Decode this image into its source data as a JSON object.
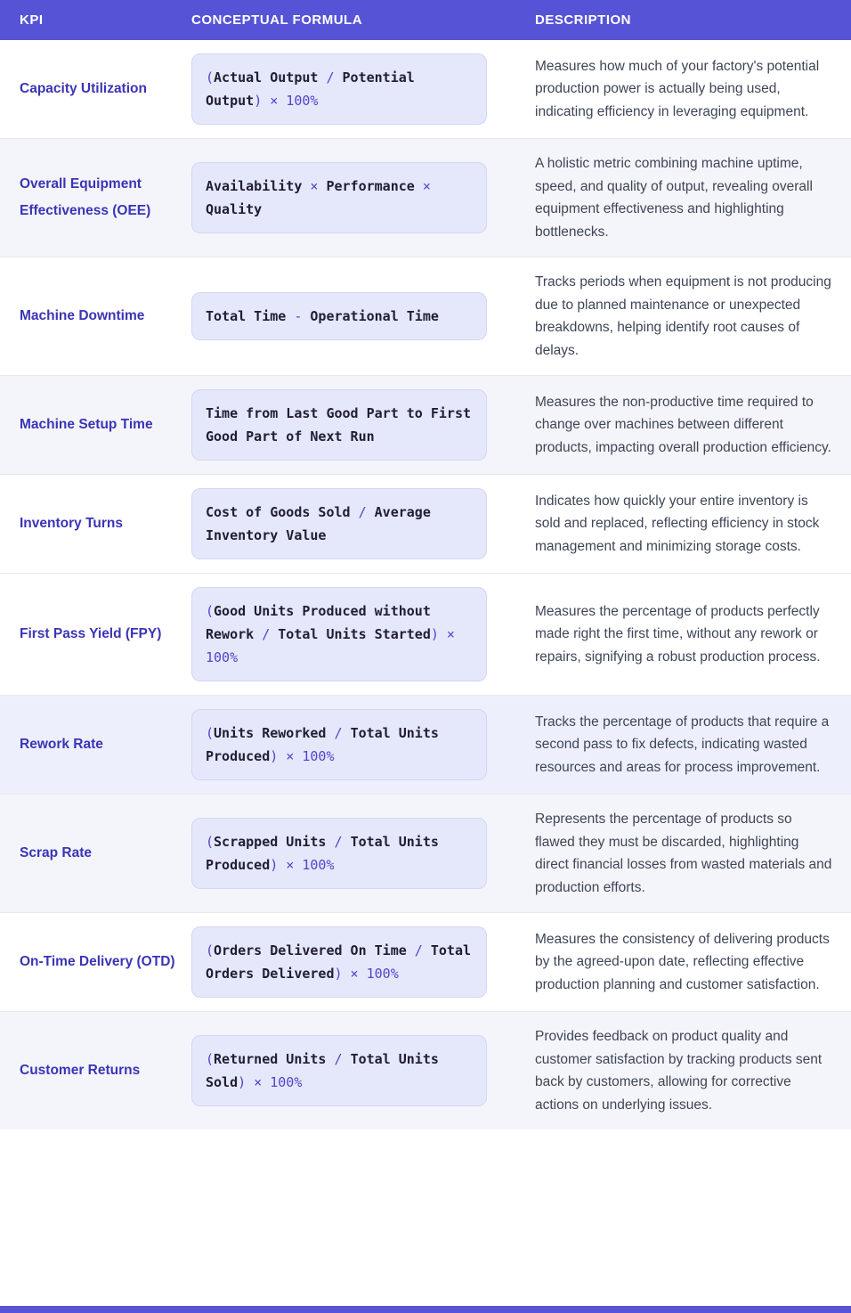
{
  "colors": {
    "header_bg": "#5653D6",
    "header_text": "#FFFFFF",
    "kpi_text": "#3B34B6",
    "description_text": "#3E4557",
    "formula_bg": "#E5E7FB",
    "formula_border": "#D3D6F5",
    "formula_var": "#1F1E33",
    "formula_op": "#4F46C9",
    "row_white_bg": "#FFFFFF",
    "row_alt_bg": "#F4F5FA",
    "row_highlight_bg": "#EDF0FC",
    "divider": "#E7E8F0",
    "footer_bar": "#5653D6"
  },
  "table": {
    "columns": [
      {
        "key": "kpi",
        "label": "KPI"
      },
      {
        "key": "formula",
        "label": "CONCEPTUAL FORMULA"
      },
      {
        "key": "description",
        "label": "DESCRIPTION"
      }
    ],
    "rows": [
      {
        "kpi": "Capacity Utilization",
        "tone": "white",
        "formula_text": "(Actual Output / Potential Output) × 100%",
        "formula_segments": [
          [
            "o",
            "("
          ],
          [
            "v",
            "Actual Output"
          ],
          [
            "o",
            " / "
          ],
          [
            "v",
            "Potential Output"
          ],
          [
            "o",
            ") × 100%"
          ]
        ],
        "description": "Measures how much of your factory's potential production power is actually being used, indicating efficiency in leveraging equipment."
      },
      {
        "kpi": "Overall Equipment Effectiveness (OEE)",
        "tone": "gray",
        "formula_text": "Availability × Performance × Quality",
        "formula_segments": [
          [
            "v",
            "Availability"
          ],
          [
            "o",
            " × "
          ],
          [
            "v",
            "Performance"
          ],
          [
            "o",
            " × "
          ],
          [
            "v",
            "Quality"
          ]
        ],
        "description": "A holistic metric combining machine uptime, speed, and quality of output, revealing overall equipment effectiveness and highlighting bottlenecks."
      },
      {
        "kpi": "Machine Downtime",
        "tone": "white",
        "formula_text": "Total Time - Operational Time",
        "formula_segments": [
          [
            "v",
            "Total Time"
          ],
          [
            "o",
            " - "
          ],
          [
            "v",
            "Operational Time"
          ]
        ],
        "description": "Tracks periods when equipment is not producing due to planned maintenance or unexpected breakdowns, helping identify root causes of delays."
      },
      {
        "kpi": "Machine Setup Time",
        "tone": "gray",
        "formula_text": "Time from Last Good Part to First Good Part of Next Run",
        "formula_segments": [
          [
            "v",
            "Time from Last Good Part to First Good Part of Next Run"
          ]
        ],
        "description": "Measures the non-productive time required to change over machines between different products, impacting overall production efficiency."
      },
      {
        "kpi": "Inventory Turns",
        "tone": "white",
        "formula_text": "Cost of Goods Sold / Average Inventory Value",
        "formula_segments": [
          [
            "v",
            "Cost of Goods Sold"
          ],
          [
            "o",
            " / "
          ],
          [
            "v",
            "Average Inventory Value"
          ]
        ],
        "description": "Indicates how quickly your entire inventory is sold and replaced, reflecting efficiency in stock management and minimizing storage costs."
      },
      {
        "kpi": "First Pass Yield (FPY)",
        "tone": "white",
        "formula_text": "(Good Units Produced without Rework / Total Units Started) × 100%",
        "formula_segments": [
          [
            "o",
            "("
          ],
          [
            "v",
            "Good Units Produced without Rework"
          ],
          [
            "o",
            " / "
          ],
          [
            "v",
            "Total Units Started"
          ],
          [
            "o",
            ") × 100%"
          ]
        ],
        "description": "Measures the percentage of products perfectly made right the first time, without any rework or repairs, signifying a robust production process."
      },
      {
        "kpi": "Rework Rate",
        "tone": "highlight",
        "formula_text": "(Units Reworked / Total Units Produced) × 100%",
        "formula_segments": [
          [
            "o",
            "("
          ],
          [
            "v",
            "Units Reworked"
          ],
          [
            "o",
            " / "
          ],
          [
            "v",
            "Total Units Produced"
          ],
          [
            "o",
            ") × 100%"
          ]
        ],
        "description": "Tracks the percentage of products that require a second pass to fix defects, indicating wasted resources and areas for process improvement."
      },
      {
        "kpi": "Scrap Rate",
        "tone": "gray",
        "formula_text": "(Scrapped Units / Total Units Produced) × 100%",
        "formula_segments": [
          [
            "o",
            "("
          ],
          [
            "v",
            "Scrapped Units"
          ],
          [
            "o",
            " / "
          ],
          [
            "v",
            "Total Units Produced"
          ],
          [
            "o",
            ") × 100%"
          ]
        ],
        "description": "Represents the percentage of products so flawed they must be discarded, highlighting direct financial losses from wasted materials and production efforts."
      },
      {
        "kpi": "On-Time Delivery (OTD)",
        "tone": "white",
        "formula_text": "(Orders Delivered On Time / Total Orders Delivered) × 100%",
        "formula_segments": [
          [
            "o",
            "("
          ],
          [
            "v",
            "Orders Delivered On Time"
          ],
          [
            "o",
            " / "
          ],
          [
            "v",
            "Total Orders Delivered"
          ],
          [
            "o",
            ") × 100%"
          ]
        ],
        "description": "Measures the consistency of delivering products by the agreed-upon date, reflecting effective production planning and customer satisfaction."
      },
      {
        "kpi": "Customer Returns",
        "tone": "gray",
        "formula_text": "(Returned Units / Total Units Sold) × 100%",
        "formula_segments": [
          [
            "o",
            "("
          ],
          [
            "v",
            "Returned Units"
          ],
          [
            "o",
            " / "
          ],
          [
            "v",
            "Total Units Sold"
          ],
          [
            "o",
            ") × 100%"
          ]
        ],
        "description": "Provides feedback on product quality and customer satisfaction by tracking products sent back by customers, allowing for corrective actions on underlying issues."
      }
    ]
  }
}
